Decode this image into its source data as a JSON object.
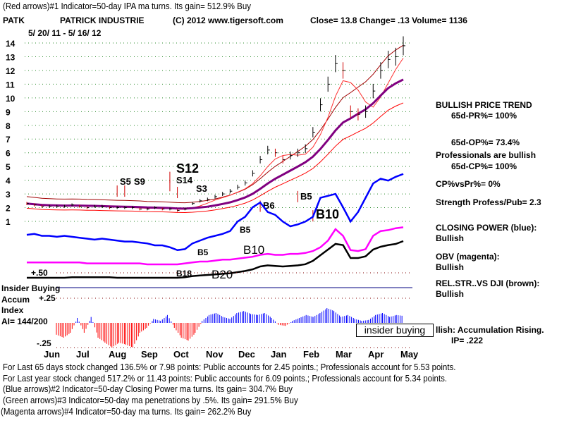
{
  "header": {
    "indicator1": "(Red arrows)#1 Indicator=50-day IPA ma turns. Its gain= 512.9% Buy",
    "ticker": "PATK",
    "company": "PATRICK INDUSTRIE",
    "copyright": "(C) 2012 www.tigersoft.com",
    "quote": "Close=  13.8   Change= .13 Volume= 1136",
    "date_range": "5/ 20/ 11 - 5/ 16/ 12"
  },
  "sidebar": {
    "price_trend": "BULLISH PRICE TREND",
    "pr": "65d-PR%= 100%",
    "op": "65d-OP%= 73.4%",
    "professionals": "Professionals are bullish",
    "cp": "65d-CP%= 100%",
    "cp_vs_pr": "CP%vsPr%=  0%",
    "strength": "Strength Profess/Pub= 2.3",
    "closing_power": "CLOSING POWER (blue):",
    "closing_power_status": "Bullish",
    "obv": "OBV (magenta):",
    "obv_status": "Bullish",
    "relstr": "REL.STR..VS DJI (brown):",
    "relstr_status": "Bullish",
    "accum_status": "llish: Accumulation Rising.",
    "ip": "IP=  .222",
    "insider_box": "insider buying"
  },
  "accum": {
    "insider": "Insider Buying",
    "label1": "Accum",
    "label2": "Index",
    "ai": "AI= 144/200"
  },
  "footer": {
    "line1": "For Last 65 days stock changed  136.5% or  7.98 points:  Public accounts for  2.45 points.;  Professionals account for  5.53 points.",
    "line2": "For Last year stock changed  517.2% or  11.43 points:  Public accounts for  6.09 points.;  Professionals account for  5.34 points.",
    "line3": "(Blue arrows)#2 Indicator=50-day Closing Power ma turns. Its gain= 304.7% Buy",
    "line4": "(Green arrows)#3 Indicator=50-day ma penetrations by .5%. Its gain= 291.5% Buy",
    "line5": "(Magenta arrows)#4 Indicator=50-day ma turns. Its gain= 262.2% Buy"
  },
  "chart_data": {
    "type": "line",
    "title": "PATK PATRICK INDUSTRIE",
    "price_ticks": [
      "1",
      "2",
      "3",
      "4",
      "5",
      "6",
      "7",
      "8",
      "9",
      "10",
      "11",
      "12",
      "13",
      "14"
    ],
    "ylim": [
      1,
      14
    ],
    "months": [
      "Jun",
      "Jul",
      "Aug",
      "Sep",
      "Oct",
      "Nov",
      "Dec",
      "Jan",
      "Feb",
      "Mar",
      "Apr",
      "May"
    ],
    "accum_ticks": [
      "+.50",
      "+.25",
      "-.25"
    ],
    "price": [
      2.3,
      2.2,
      2.1,
      2.1,
      2.1,
      2.1,
      2.2,
      2.1,
      2.0,
      2.1,
      2.1,
      2.0,
      2.0,
      2.0,
      2.0,
      1.9,
      1.9,
      2.0,
      1.9,
      1.9,
      1.8,
      1.9,
      2.3,
      2.5,
      2.6,
      2.8,
      3.0,
      3.2,
      3.5,
      3.8,
      4.5,
      5.5,
      6.2,
      6.0,
      5.5,
      5.8,
      6.0,
      6.3,
      7.5,
      9.5,
      11,
      12.5,
      12.0,
      9.0,
      8.8,
      9.0,
      10.5,
      12.0,
      12.8,
      13.0,
      13.8
    ],
    "closing_power": [
      31,
      32,
      30,
      30,
      29,
      30,
      29,
      28,
      27,
      26,
      27,
      26,
      25,
      24,
      24,
      23,
      22,
      20,
      20,
      18,
      15,
      16,
      22,
      25,
      28,
      30,
      32,
      35,
      45,
      50,
      60,
      65,
      55,
      52,
      45,
      40,
      42,
      45,
      50,
      70,
      72,
      74,
      60,
      45,
      55,
      70,
      85,
      90,
      88,
      92,
      95
    ],
    "obv": [
      2,
      2,
      2,
      2,
      2,
      2,
      2,
      2,
      1,
      1,
      1,
      1,
      1,
      1,
      1,
      1,
      0,
      0,
      0,
      0,
      0,
      1,
      2,
      3,
      3,
      4,
      5,
      5,
      6,
      7,
      8,
      10,
      11,
      10,
      10,
      11,
      11,
      12,
      14,
      18,
      25,
      37,
      30,
      15,
      14,
      16,
      30,
      35,
      36,
      38,
      39
    ],
    "rel_strength": [
      20,
      20,
      20,
      20,
      20,
      20,
      21,
      21,
      21,
      21,
      21,
      21,
      20,
      20,
      20,
      20,
      20,
      20,
      20,
      20,
      20,
      21,
      23,
      24,
      25,
      26,
      27,
      28,
      30,
      32,
      35,
      40,
      42,
      41,
      40,
      41,
      42,
      44,
      50,
      60,
      70,
      80,
      78,
      55,
      55,
      58,
      70,
      75,
      78,
      80,
      85
    ],
    "accum_index": [
      -0.12,
      -0.15,
      -0.1,
      0.05,
      -0.1,
      0.06,
      -0.15,
      -0.2,
      -0.25,
      -0.2,
      -0.22,
      -0.25,
      -0.1,
      -0.05,
      0.04,
      0.02,
      0.08,
      -0.05,
      -0.15,
      -0.18,
      -0.1,
      0.02,
      0.08,
      0.1,
      0.06,
      0.04,
      0.1,
      0.12,
      0.09,
      0.08,
      0.1,
      0.05,
      -0.02,
      -0.03,
      0.02,
      0.05,
      0.08,
      0.06,
      0.1,
      0.15,
      0.12,
      0.06,
      0.08,
      0.04,
      0.02,
      0.03,
      0.08,
      0.1,
      0.06,
      0.08,
      0.07
    ],
    "signals": [
      {
        "label": "S12",
        "week": 19,
        "price": 4.0,
        "color": "#000000",
        "big": true
      },
      {
        "label": "S14",
        "week": 19,
        "price": 3.4,
        "color": "#000000"
      },
      {
        "label": "S3",
        "week": 20,
        "price": 2.9,
        "color": "#000000"
      },
      {
        "label": "S5",
        "week": 12,
        "price": 3.0,
        "color": "#000000"
      },
      {
        "label": "S9",
        "week": 13,
        "price": 3.0,
        "color": "#000000"
      },
      {
        "label": "B5",
        "week": 36,
        "price": 2.6,
        "color": "#000000"
      },
      {
        "label": "B6",
        "week": 31,
        "price": 1.9,
        "color": "#000000"
      },
      {
        "label": "B10",
        "week": 38,
        "price": 1.2,
        "color": "#000000",
        "big": true
      }
    ],
    "cp_signals": [
      {
        "label": "B18",
        "week": 20,
        "color": "#000000"
      },
      {
        "label": "B5",
        "week": 21,
        "color": "#000000"
      },
      {
        "label": "B20",
        "week": 25,
        "color": "#000000",
        "big": true
      },
      {
        "label": "B10",
        "week": 28,
        "color": "#000000",
        "big": true
      },
      {
        "label": "B5",
        "week": 28,
        "color": "#000000"
      }
    ],
    "colors": {
      "price": "#000000",
      "ma": "#800080",
      "bands": "#ff0000",
      "closing_power": "#0000ff",
      "obv": "#ff00ff",
      "rel_strength": "#000000",
      "accum_pos": "#0000ff",
      "accum_neg": "#ff0000"
    }
  }
}
